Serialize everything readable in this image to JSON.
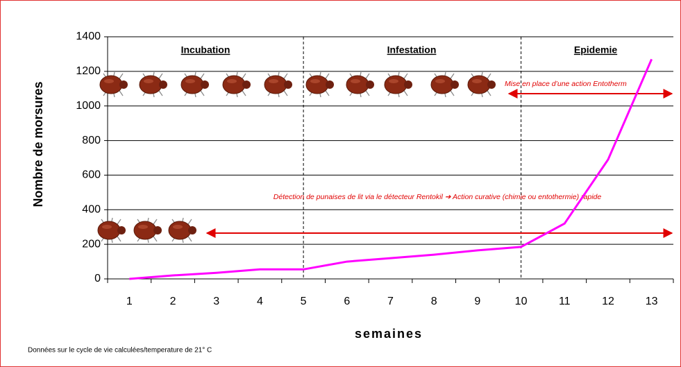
{
  "chart_data": {
    "type": "line",
    "x_label": "semaines",
    "y_label": "Nombre de morsures",
    "categories": [
      "1",
      "2",
      "3",
      "4",
      "5",
      "6",
      "7",
      "8",
      "9",
      "10",
      "11",
      "12",
      "13"
    ],
    "series": [
      {
        "name": "morsures",
        "color": "#ff00ff",
        "values": [
          0,
          20,
          35,
          55,
          55,
          100,
          120,
          140,
          165,
          185,
          320,
          690,
          1270
        ]
      }
    ],
    "ylim": [
      0,
      1400
    ],
    "yticks": [
      0,
      200,
      400,
      600,
      800,
      1000,
      1200,
      1400
    ],
    "grid": true,
    "phases": [
      "Incubation",
      "Infestation",
      "Epidemie"
    ],
    "annotations": [
      "Mise en place d’une action Entotherm",
      "Détection de punaises de lit via le détecteur Rentokil ➔ Action curative (chimie ou entothermie) rapide"
    ],
    "footnote": "Données sur le cycle de vie calculées/temperature de 21° C"
  }
}
